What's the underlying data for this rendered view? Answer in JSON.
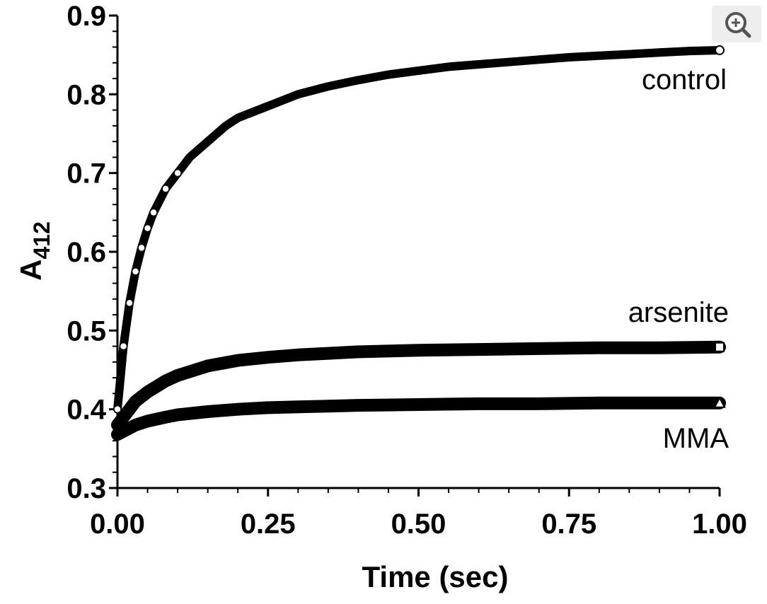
{
  "chart_data": {
    "type": "scatter",
    "title": "",
    "xlabel": "Time (sec)",
    "ylabel": "A",
    "ylabel_subscript": "412",
    "xlim": [
      0,
      1.0
    ],
    "ylim": [
      0.3,
      0.9
    ],
    "x_ticks": [
      "0.00",
      "0.25",
      "0.50",
      "0.75",
      "1.00"
    ],
    "x_tick_values": [
      0,
      0.25,
      0.5,
      0.75,
      1.0
    ],
    "y_ticks": [
      "0.3",
      "0.4",
      "0.5",
      "0.6",
      "0.7",
      "0.8",
      "0.9"
    ],
    "y_tick_values": [
      0.3,
      0.4,
      0.5,
      0.6,
      0.7,
      0.8,
      0.9
    ],
    "series": [
      {
        "name": "control",
        "marker": "circle",
        "fill": "#ffffff",
        "x": [
          0.0,
          0.01,
          0.02,
          0.03,
          0.04,
          0.05,
          0.06,
          0.08,
          0.1,
          0.12,
          0.15,
          0.18,
          0.2,
          0.25,
          0.3,
          0.35,
          0.4,
          0.45,
          0.5,
          0.55,
          0.6,
          0.65,
          0.7,
          0.75,
          0.8,
          0.85,
          0.9,
          0.95,
          1.0
        ],
        "y": [
          0.4,
          0.48,
          0.535,
          0.575,
          0.605,
          0.63,
          0.65,
          0.68,
          0.7,
          0.72,
          0.74,
          0.76,
          0.77,
          0.785,
          0.8,
          0.81,
          0.818,
          0.825,
          0.83,
          0.835,
          0.838,
          0.841,
          0.844,
          0.847,
          0.849,
          0.851,
          0.853,
          0.855,
          0.856
        ]
      },
      {
        "name": "arsenite",
        "marker": "square",
        "fill": "#ffffff",
        "x": [
          0.0,
          0.01,
          0.02,
          0.03,
          0.05,
          0.08,
          0.1,
          0.15,
          0.2,
          0.25,
          0.3,
          0.35,
          0.4,
          0.5,
          0.6,
          0.7,
          0.8,
          0.9,
          1.0
        ],
        "y": [
          0.38,
          0.39,
          0.4,
          0.41,
          0.422,
          0.436,
          0.443,
          0.455,
          0.462,
          0.466,
          0.469,
          0.471,
          0.473,
          0.475,
          0.476,
          0.477,
          0.478,
          0.478,
          0.479
        ]
      },
      {
        "name": "MMA",
        "marker": "triangle",
        "fill": "#ffffff",
        "x": [
          0.0,
          0.01,
          0.02,
          0.03,
          0.05,
          0.08,
          0.1,
          0.15,
          0.2,
          0.25,
          0.3,
          0.35,
          0.4,
          0.5,
          0.6,
          0.7,
          0.8,
          0.9,
          1.0
        ],
        "y": [
          0.368,
          0.372,
          0.376,
          0.38,
          0.385,
          0.39,
          0.393,
          0.397,
          0.4,
          0.402,
          0.403,
          0.404,
          0.405,
          0.406,
          0.407,
          0.407,
          0.408,
          0.408,
          0.408
        ]
      }
    ],
    "annotations": [
      "control",
      "arsenite",
      "MMA"
    ]
  },
  "ui": {
    "zoom_icon": "zoom-in-icon"
  }
}
